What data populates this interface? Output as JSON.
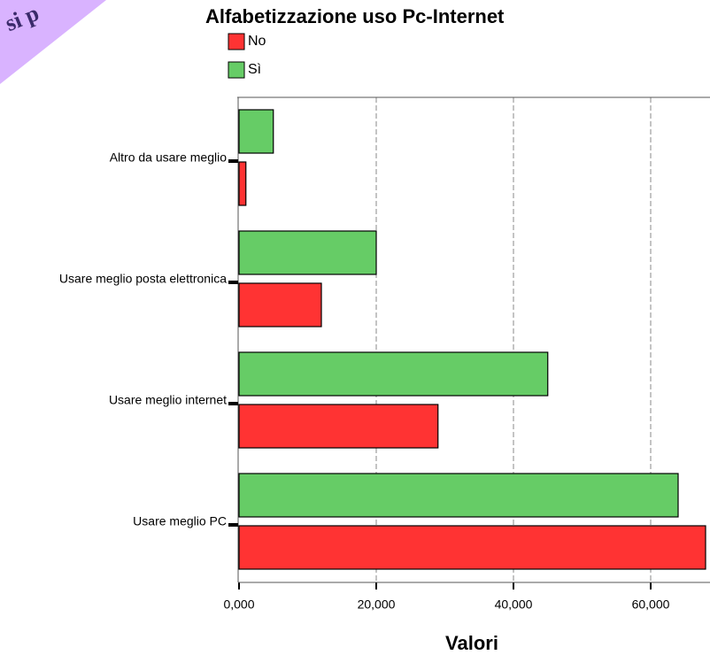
{
  "corner_text": "si p",
  "chart_data": {
    "type": "hbar",
    "title": "Alfabetizzazione uso Pc-Internet",
    "categories": [
      "Altro da usare meglio",
      "Usare meglio posta elettronica",
      "Usare meglio internet",
      "Usare meglio PC"
    ],
    "series": [
      {
        "name": "No",
        "color": "#ff3333",
        "values": [
          1000,
          12000,
          29000,
          68000
        ]
      },
      {
        "name": "Sì",
        "color": "#66cc66",
        "values": [
          5000,
          20000,
          45000,
          64000
        ]
      }
    ],
    "xlabel": "Valori",
    "xlim": [
      0,
      68000
    ],
    "xticks": [
      {
        "value": 0,
        "label": "0,000"
      },
      {
        "value": 20000,
        "label": "20,000"
      },
      {
        "value": 40000,
        "label": "40,000"
      },
      {
        "value": 60000,
        "label": "60,000"
      }
    ],
    "grid": true,
    "legend": "top-left"
  }
}
